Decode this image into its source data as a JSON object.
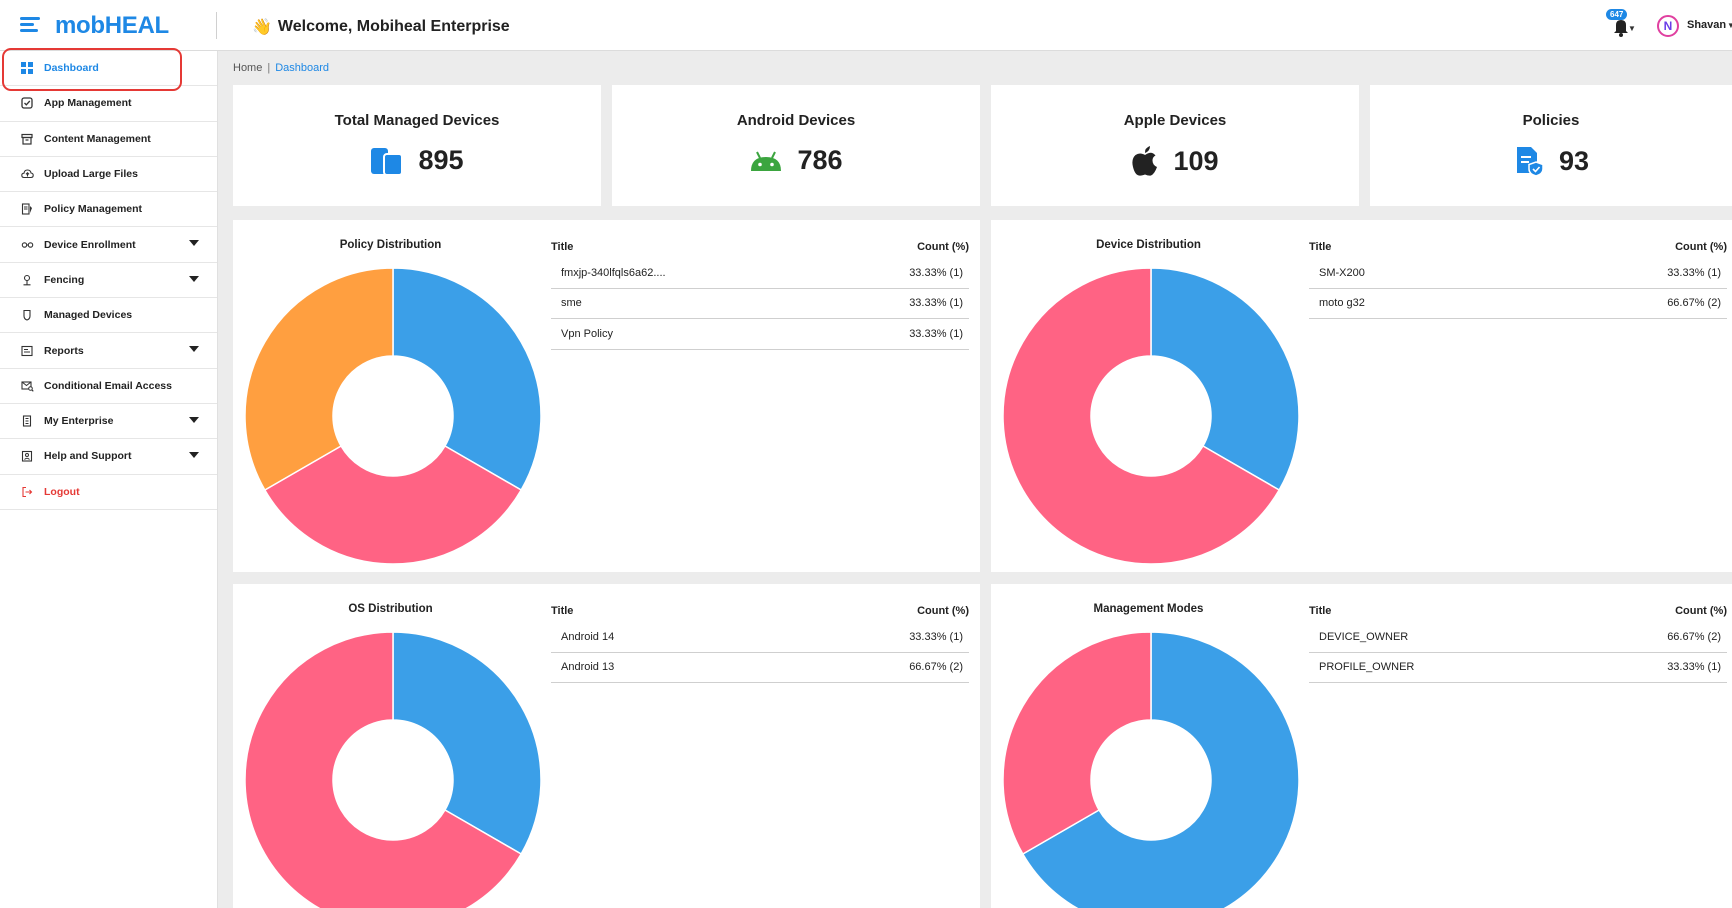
{
  "header": {
    "logo_text": "mob",
    "logo_accent": "HEAL",
    "welcome_emoji": "👋",
    "welcome_text": "Welcome, Mobiheal Enterprise",
    "notification_count": "647",
    "user_initial": "N",
    "user_name": "Shavan"
  },
  "sidebar": {
    "items": [
      {
        "label": "Dashboard",
        "icon": "grid-icon"
      },
      {
        "label": "App Management",
        "icon": "app-check-icon"
      },
      {
        "label": "Content Management",
        "icon": "archive-icon"
      },
      {
        "label": "Upload Large Files",
        "icon": "cloud-upload-icon"
      },
      {
        "label": "Policy Management",
        "icon": "policy-icon"
      },
      {
        "label": "Device Enrollment",
        "icon": "enroll-icon"
      },
      {
        "label": "Fencing",
        "icon": "location-pin-icon"
      },
      {
        "label": "Managed Devices",
        "icon": "shield-icon"
      },
      {
        "label": "Reports",
        "icon": "report-icon"
      },
      {
        "label": "Conditional Email Access",
        "icon": "email-search-icon"
      },
      {
        "label": "My Enterprise",
        "icon": "building-icon"
      },
      {
        "label": "Help and Support",
        "icon": "help-icon"
      },
      {
        "label": "Logout",
        "icon": "logout-icon"
      }
    ]
  },
  "breadcrumb": {
    "home": "Home",
    "separator": "|",
    "current": "Dashboard"
  },
  "stats": [
    {
      "title": "Total Managed Devices",
      "value": "895",
      "icon": "devices-icon"
    },
    {
      "title": "Android Devices",
      "value": "786",
      "icon": "android-icon"
    },
    {
      "title": "Apple Devices",
      "value": "109",
      "icon": "apple-icon"
    },
    {
      "title": "Policies",
      "value": "93",
      "icon": "policy-doc-icon"
    }
  ],
  "panels": [
    {
      "title": "Policy Distribution",
      "col_title": "Title",
      "col_count": "Count (%)",
      "rows": [
        {
          "title": "fmxjp-340lfqls6a62....",
          "count": "33.33% (1)"
        },
        {
          "title": "sme",
          "count": "33.33% (1)"
        },
        {
          "title": "Vpn Policy",
          "count": "33.33% (1)"
        }
      ]
    },
    {
      "title": "Device Distribution",
      "col_title": "Title",
      "col_count": "Count (%)",
      "rows": [
        {
          "title": "SM-X200",
          "count": "33.33% (1)"
        },
        {
          "title": "moto g32",
          "count": "66.67% (2)"
        }
      ]
    },
    {
      "title": "OS Distribution",
      "col_title": "Title",
      "col_count": "Count (%)",
      "rows": [
        {
          "title": "Android 14",
          "count": "33.33% (1)"
        },
        {
          "title": "Android 13",
          "count": "66.67% (2)"
        }
      ]
    },
    {
      "title": "Management Modes",
      "col_title": "Title",
      "col_count": "Count (%)",
      "rows": [
        {
          "title": "DEVICE_OWNER",
          "count": "66.67% (2)"
        },
        {
          "title": "PROFILE_OWNER",
          "count": "33.33% (1)"
        }
      ]
    }
  ],
  "chart_data": [
    {
      "type": "pie",
      "title": "Policy Distribution",
      "categories": [
        "fmxjp-340lfqls6a62....",
        "sme",
        "Vpn Policy"
      ],
      "values": [
        1,
        1,
        1
      ],
      "colors": [
        "#3b9fe8",
        "#ff6384",
        "#ff9f40"
      ]
    },
    {
      "type": "pie",
      "title": "Device Distribution",
      "categories": [
        "SM-X200",
        "moto g32"
      ],
      "values": [
        1,
        2
      ],
      "colors": [
        "#3b9fe8",
        "#ff6384"
      ]
    },
    {
      "type": "pie",
      "title": "OS Distribution",
      "categories": [
        "Android 14",
        "Android 13"
      ],
      "values": [
        1,
        2
      ],
      "colors": [
        "#3b9fe8",
        "#ff6384"
      ]
    },
    {
      "type": "pie",
      "title": "Management Modes",
      "categories": [
        "DEVICE_OWNER",
        "PROFILE_OWNER"
      ],
      "values": [
        2,
        1
      ],
      "colors": [
        "#3b9fe8",
        "#ff6384"
      ]
    }
  ],
  "colors": {
    "accent": "#1e88e5",
    "logout": "#e53935",
    "highlight_border": "#e53935"
  }
}
